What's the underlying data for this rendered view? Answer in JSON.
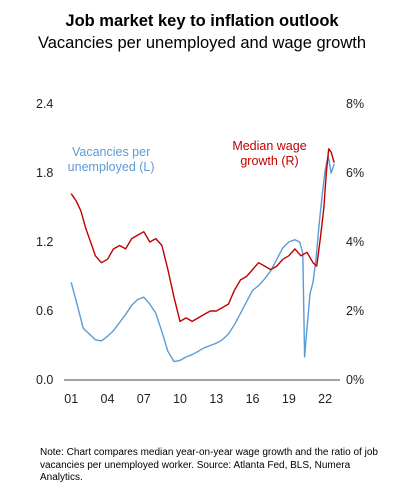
{
  "chart_data": {
    "type": "line",
    "title": "Job market key to inflation outlook",
    "subtitle": "Vacancies per unemployed and wage growth",
    "x_ticks": [
      "01",
      "04",
      "07",
      "10",
      "13",
      "16",
      "19",
      "22"
    ],
    "x_range": [
      2000.9,
      2022.9
    ],
    "y_left": {
      "range": [
        0,
        2.4
      ],
      "ticks": [
        "0.0",
        "0.6",
        "1.2",
        "1.8",
        "2.4"
      ]
    },
    "y_right": {
      "range": [
        0,
        8
      ],
      "ticks": [
        "0%",
        "2%",
        "4%",
        "6%",
        "8%"
      ]
    },
    "series": [
      {
        "name": "Vacancies per unemployed (L)",
        "axis": "left",
        "color": "#5b9bd5",
        "points": [
          [
            2001.0,
            0.85
          ],
          [
            2001.5,
            0.65
          ],
          [
            2002.0,
            0.45
          ],
          [
            2002.5,
            0.4
          ],
          [
            2003.0,
            0.35
          ],
          [
            2003.5,
            0.34
          ],
          [
            2004.0,
            0.38
          ],
          [
            2004.5,
            0.43
          ],
          [
            2005.0,
            0.5
          ],
          [
            2005.5,
            0.57
          ],
          [
            2006.0,
            0.65
          ],
          [
            2006.5,
            0.7
          ],
          [
            2007.0,
            0.72
          ],
          [
            2007.5,
            0.66
          ],
          [
            2008.0,
            0.58
          ],
          [
            2008.5,
            0.42
          ],
          [
            2009.0,
            0.25
          ],
          [
            2009.5,
            0.16
          ],
          [
            2010.0,
            0.17
          ],
          [
            2010.5,
            0.2
          ],
          [
            2011.0,
            0.22
          ],
          [
            2011.5,
            0.25
          ],
          [
            2012.0,
            0.28
          ],
          [
            2012.5,
            0.3
          ],
          [
            2013.0,
            0.32
          ],
          [
            2013.5,
            0.35
          ],
          [
            2014.0,
            0.4
          ],
          [
            2014.5,
            0.48
          ],
          [
            2015.0,
            0.58
          ],
          [
            2015.5,
            0.68
          ],
          [
            2016.0,
            0.78
          ],
          [
            2016.5,
            0.82
          ],
          [
            2017.0,
            0.88
          ],
          [
            2017.5,
            0.95
          ],
          [
            2018.0,
            1.05
          ],
          [
            2018.5,
            1.15
          ],
          [
            2019.0,
            1.2
          ],
          [
            2019.5,
            1.22
          ],
          [
            2019.9,
            1.2
          ],
          [
            2020.15,
            1.1
          ],
          [
            2020.3,
            0.2
          ],
          [
            2020.5,
            0.45
          ],
          [
            2020.75,
            0.75
          ],
          [
            2021.0,
            0.85
          ],
          [
            2021.25,
            1.05
          ],
          [
            2021.5,
            1.35
          ],
          [
            2021.75,
            1.6
          ],
          [
            2022.0,
            1.82
          ],
          [
            2022.25,
            1.95
          ],
          [
            2022.5,
            1.8
          ],
          [
            2022.75,
            1.88
          ]
        ]
      },
      {
        "name": "Median wage growth (R)",
        "axis": "right",
        "color": "#c00000",
        "points": [
          [
            2001.0,
            5.4
          ],
          [
            2001.4,
            5.2
          ],
          [
            2001.8,
            4.9
          ],
          [
            2002.2,
            4.4
          ],
          [
            2002.6,
            4.0
          ],
          [
            2003.0,
            3.6
          ],
          [
            2003.5,
            3.4
          ],
          [
            2004.0,
            3.5
          ],
          [
            2004.5,
            3.8
          ],
          [
            2005.0,
            3.9
          ],
          [
            2005.5,
            3.8
          ],
          [
            2006.0,
            4.1
          ],
          [
            2006.5,
            4.2
          ],
          [
            2007.0,
            4.3
          ],
          [
            2007.5,
            4.0
          ],
          [
            2008.0,
            4.1
          ],
          [
            2008.5,
            3.9
          ],
          [
            2009.0,
            3.2
          ],
          [
            2009.5,
            2.4
          ],
          [
            2010.0,
            1.7
          ],
          [
            2010.5,
            1.8
          ],
          [
            2011.0,
            1.7
          ],
          [
            2011.5,
            1.8
          ],
          [
            2012.0,
            1.9
          ],
          [
            2012.5,
            2.0
          ],
          [
            2013.0,
            2.0
          ],
          [
            2013.5,
            2.1
          ],
          [
            2014.0,
            2.2
          ],
          [
            2014.5,
            2.6
          ],
          [
            2015.0,
            2.9
          ],
          [
            2015.5,
            3.0
          ],
          [
            2016.0,
            3.2
          ],
          [
            2016.5,
            3.4
          ],
          [
            2017.0,
            3.3
          ],
          [
            2017.5,
            3.2
          ],
          [
            2018.0,
            3.3
          ],
          [
            2018.5,
            3.5
          ],
          [
            2019.0,
            3.6
          ],
          [
            2019.5,
            3.8
          ],
          [
            2020.0,
            3.6
          ],
          [
            2020.5,
            3.7
          ],
          [
            2021.0,
            3.4
          ],
          [
            2021.3,
            3.3
          ],
          [
            2021.6,
            4.1
          ],
          [
            2021.9,
            5.0
          ],
          [
            2022.1,
            6.0
          ],
          [
            2022.3,
            6.7
          ],
          [
            2022.5,
            6.6
          ],
          [
            2022.75,
            6.3
          ]
        ]
      }
    ],
    "annotations": [
      {
        "series": 0,
        "lines": [
          "Vacancies per",
          "unemployed (L)"
        ],
        "x": 2004.3,
        "y_left": 1.95
      },
      {
        "series": 1,
        "lines": [
          "Median wage",
          "growth (R)"
        ],
        "x": 2017.4,
        "y_left": 2.0
      }
    ],
    "grid": false,
    "legend": "none"
  },
  "note": "Note: Chart compares median year-on-year wage growth and the ratio of job vacancies per unemployed worker. Source: Atlanta Fed, BLS, Numera Analytics."
}
